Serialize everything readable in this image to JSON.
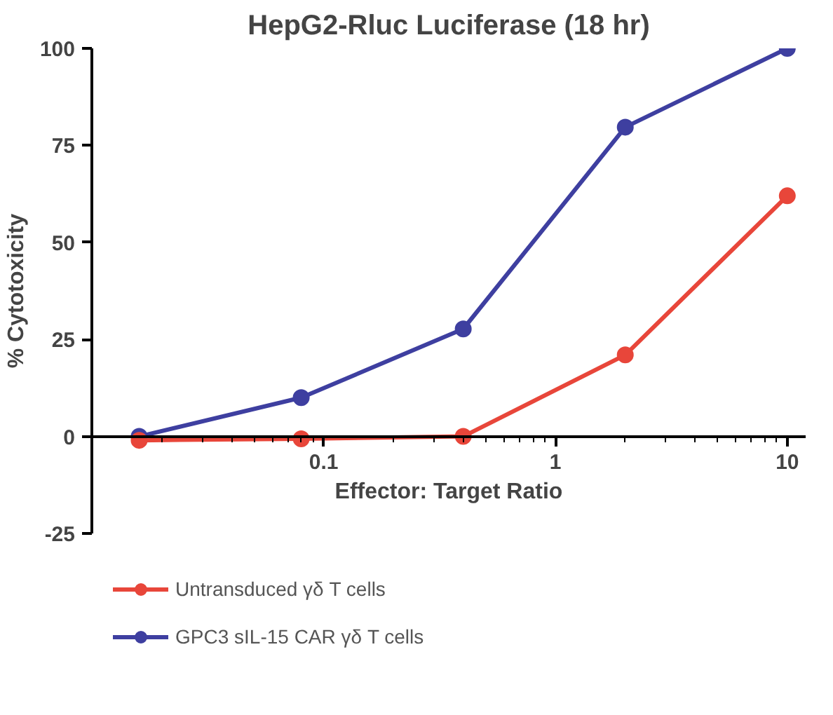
{
  "chart_data": {
    "type": "line",
    "title": "HepG2-Rluc Luciferase (18 hr)",
    "xlabel": "Effector: Target Ratio",
    "ylabel": "% Cytotoxicity",
    "x": [
      0.016,
      0.08,
      0.4,
      2,
      10
    ],
    "series": [
      {
        "name": "Untransduced γδ T cells",
        "color": "#e8463a",
        "values": [
          -1,
          -0.6,
          0,
          21,
          62
        ]
      },
      {
        "name": "GPC3 sIL-15 CAR γδ T cells",
        "color": "#3e3fa0",
        "values": [
          0,
          10,
          27.7,
          79.7,
          100
        ]
      }
    ],
    "log": "x",
    "xlim": [
      0.01,
      12
    ],
    "xticks": [
      0.1,
      1,
      10
    ],
    "ylim": [
      -25,
      100
    ],
    "yticks": [
      -25,
      0,
      25,
      50,
      75,
      100
    ],
    "marker": "circle",
    "line_style": "solid",
    "legend": "bottom",
    "grid": false
  }
}
